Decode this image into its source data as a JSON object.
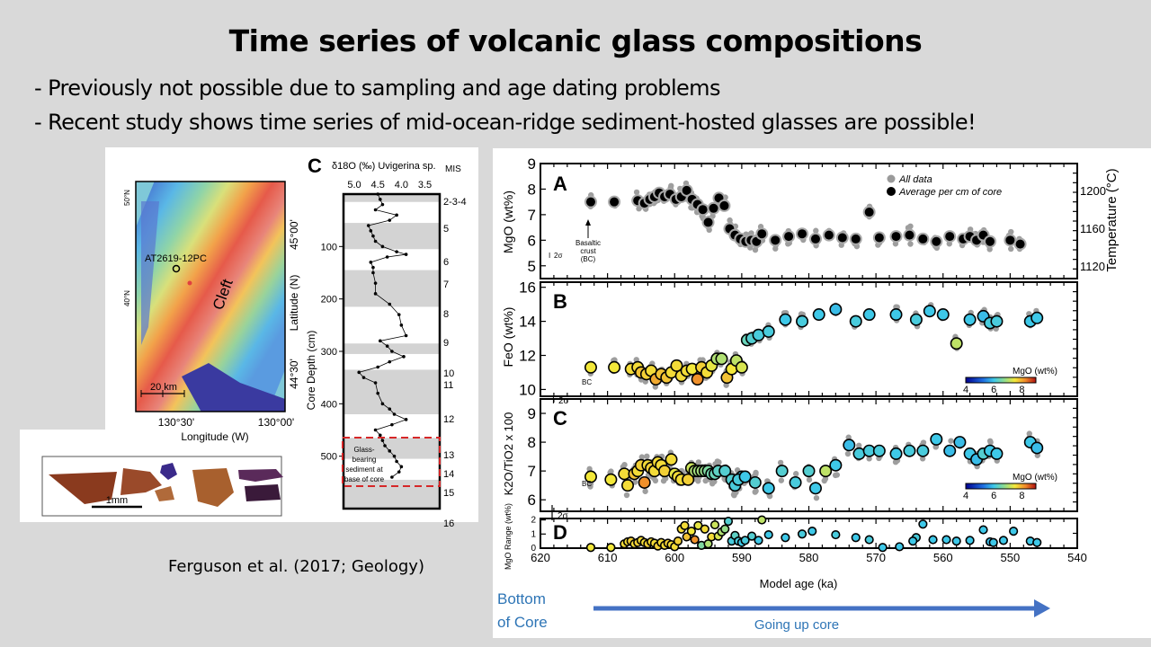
{
  "slide": {
    "title": "Time series of volcanic glass compositions",
    "bullets": [
      "- Previously not possible due to sampling and age dating problems",
      "- Recent study shows time series of mid-ocean-ridge sediment-hosted glasses are possible!"
    ],
    "citation": "Ferguson et al. (2017; Geology)",
    "bottom_label_line1": "Bottom",
    "bottom_label_line2": "of Core",
    "arrow_label": "Going up core",
    "arrow_color": "#4472c4",
    "label_color": "#2e75b6"
  },
  "map_panel": {
    "site_label": "AT2619-12PC",
    "feature_label": "Cleft",
    "scale_label": "20 km",
    "lat_ticks_left": [
      "50°N",
      "40°N"
    ],
    "lat_ticks_right": [
      "45°00'",
      "44°30'"
    ],
    "lon_ticks": [
      "130°30'",
      "130°00'"
    ],
    "ylabel": "Latitude (N)",
    "xlabel": "Longitude (W)"
  },
  "glass_panel": {
    "scale_label": "1mm"
  },
  "core_panel": {
    "panel_letter": "C",
    "top_label": "δ18O (‰) Uvigerina sp.",
    "mis_label": "MIS",
    "x_ticks": [
      "5.0",
      "4.5",
      "4.0",
      "3.5"
    ],
    "ylabel": "Core Depth (cm)",
    "depth_ticks": [
      100,
      200,
      300,
      400,
      500
    ],
    "mis_stages": [
      "2-3-4",
      "5",
      "6",
      "7",
      "8",
      "9",
      "10",
      "11",
      "12",
      "13",
      "14",
      "15",
      "16"
    ],
    "glass_note": [
      "Glass-",
      "bearing",
      "sediment at",
      "base of core"
    ],
    "shaded_bands_cm": [
      [
        0,
        15
      ],
      [
        55,
        105
      ],
      [
        145,
        215
      ],
      [
        285,
        305
      ],
      [
        335,
        420
      ],
      [
        465,
        505
      ],
      [
        545,
        600
      ]
    ],
    "d18O_profile": [
      [
        0,
        4.5
      ],
      [
        10,
        4.45
      ],
      [
        20,
        4.4
      ],
      [
        30,
        4.55
      ],
      [
        40,
        4.1
      ],
      [
        50,
        4.25
      ],
      [
        60,
        4.7
      ],
      [
        70,
        4.65
      ],
      [
        80,
        4.6
      ],
      [
        90,
        4.55
      ],
      [
        100,
        4.4
      ],
      [
        110,
        4.1
      ],
      [
        115,
        3.9
      ],
      [
        120,
        4.3
      ],
      [
        130,
        4.65
      ],
      [
        140,
        4.6
      ],
      [
        150,
        4.6
      ],
      [
        170,
        4.55
      ],
      [
        190,
        4.55
      ],
      [
        210,
        4.25
      ],
      [
        230,
        4.05
      ],
      [
        250,
        4.0
      ],
      [
        270,
        3.9
      ],
      [
        280,
        4.45
      ],
      [
        290,
        4.3
      ],
      [
        300,
        4.2
      ],
      [
        310,
        3.95
      ],
      [
        320,
        4.25
      ],
      [
        330,
        4.5
      ],
      [
        340,
        4.9
      ],
      [
        350,
        4.8
      ],
      [
        360,
        4.55
      ],
      [
        380,
        4.5
      ],
      [
        400,
        4.4
      ],
      [
        410,
        4.25
      ],
      [
        420,
        4.15
      ],
      [
        430,
        3.9
      ],
      [
        440,
        4.2
      ],
      [
        450,
        4.55
      ],
      [
        460,
        4.45
      ],
      [
        470,
        4.4
      ],
      [
        480,
        4.35
      ],
      [
        490,
        4.25
      ],
      [
        500,
        4.15
      ],
      [
        510,
        4.1
      ],
      [
        520,
        4.0
      ],
      [
        530,
        4.05
      ],
      [
        540,
        4.2
      ]
    ]
  },
  "chart_data": [
    {
      "type": "scatter",
      "panel": "A",
      "xlabel": "Model age (ka)",
      "ylabel": "MgO (wt%)",
      "y2label": "Temperature (°C)",
      "xlim": [
        620,
        540
      ],
      "ylim": [
        4.5,
        9
      ],
      "y_ticks": [
        5,
        6,
        7,
        8,
        9
      ],
      "y2_ticks": [
        1120,
        1160,
        1200
      ],
      "legend": [
        "All data",
        "Average per cm of core"
      ],
      "legend_position": "top-right",
      "annotation": [
        "Basaltic",
        "crust",
        "(BC)"
      ],
      "error_label": "2σ",
      "series": [
        {
          "name": "Average per cm of core",
          "x": [
            612.5,
            609,
            605.5,
            604.5,
            603.7,
            603,
            602.3,
            601.5,
            600.7,
            599.8,
            599,
            598.2,
            597.4,
            596.6,
            595.8,
            595,
            594.2,
            593.4,
            592.6,
            591.8,
            591,
            590.2,
            589.4,
            588.6,
            587.8,
            587,
            585,
            583,
            581,
            579,
            577,
            575,
            573,
            571,
            569.5,
            567,
            565,
            563,
            561,
            559,
            557,
            556,
            555,
            554,
            553,
            550,
            548.5
          ],
          "y": [
            7.5,
            7.5,
            7.55,
            7.45,
            7.6,
            7.7,
            7.85,
            7.7,
            7.8,
            7.6,
            7.7,
            7.95,
            7.6,
            7.4,
            7.2,
            6.7,
            7.25,
            7.65,
            7.35,
            6.45,
            6.2,
            6.05,
            5.95,
            6.0,
            5.95,
            6.25,
            6.0,
            6.15,
            6.25,
            6.05,
            6.2,
            6.1,
            6.05,
            7.1,
            6.1,
            6.15,
            6.2,
            6.05,
            5.95,
            6.15,
            6.05,
            6.15,
            6.0,
            6.2,
            5.95,
            6.0,
            5.85
          ]
        }
      ]
    },
    {
      "type": "scatter",
      "panel": "B",
      "xlabel": "Model age (ka)",
      "ylabel": "FeO (wt%)",
      "xlim": [
        620,
        540
      ],
      "ylim": [
        9.5,
        16.3
      ],
      "y_ticks": [
        10,
        12,
        14,
        16
      ],
      "colorbar_label": "MgO (wt%)",
      "colorbar_ticks": [
        4,
        6,
        8
      ],
      "annotation": "BC",
      "error_label": "2σ",
      "series": [
        {
          "name": "Average per cm of core",
          "x": [
            612.5,
            609,
            606.5,
            605.5,
            605,
            604.2,
            603.5,
            602.8,
            602,
            601.2,
            600.5,
            599.7,
            599,
            598.2,
            597.4,
            596.6,
            596,
            595.2,
            594.5,
            593.7,
            593,
            592.2,
            591.5,
            590.8,
            590,
            589.2,
            588.5,
            587.5,
            586,
            583.5,
            581,
            578.5,
            576,
            573,
            571,
            567,
            564,
            562,
            560,
            558,
            556,
            554,
            553,
            552,
            547,
            546
          ],
          "y": [
            11.3,
            11.3,
            11.2,
            11.3,
            11.0,
            10.9,
            11.1,
            10.6,
            10.9,
            10.7,
            11.0,
            11.4,
            10.8,
            11.1,
            11.2,
            10.6,
            11.3,
            11.0,
            11.4,
            11.8,
            11.8,
            10.7,
            11.2,
            11.7,
            11.3,
            12.9,
            13.0,
            13.2,
            13.4,
            14.1,
            14.0,
            14.4,
            14.7,
            14.0,
            14.4,
            14.4,
            14.1,
            14.6,
            14.4,
            12.7,
            14.1,
            14.3,
            13.9,
            14.0,
            14.0,
            14.2
          ],
          "mgo": [
            7.5,
            7.5,
            7.6,
            7.6,
            7.8,
            7.7,
            7.6,
            8.0,
            7.8,
            7.8,
            7.6,
            7.6,
            7.6,
            7.6,
            7.5,
            8.2,
            7.7,
            7.6,
            7.4,
            7.0,
            7.0,
            7.8,
            7.5,
            7.1,
            7.3,
            6.4,
            6.2,
            6.1,
            6.1,
            6.0,
            6.1,
            6.0,
            5.9,
            6.1,
            6.0,
            6.0,
            6.1,
            6.0,
            6.0,
            7.1,
            6.0,
            5.9,
            6.1,
            6.1,
            6.0,
            6.0
          ]
        }
      ]
    },
    {
      "type": "scatter",
      "panel": "C",
      "xlabel": "Model age (ka)",
      "ylabel": "K2O/TiO2 x 100",
      "xlim": [
        620,
        540
      ],
      "ylim": [
        5.6,
        9.5
      ],
      "y_ticks": [
        6,
        7,
        8,
        9
      ],
      "colorbar_label": "MgO (wt%)",
      "colorbar_ticks": [
        4,
        6,
        8
      ],
      "annotation": "BC",
      "error_label": "2σ",
      "series": [
        {
          "name": "Average per cm of core",
          "x": [
            612.5,
            609.5,
            607.5,
            607,
            606,
            605.5,
            605,
            604.5,
            604,
            603.5,
            603,
            602.5,
            602,
            601.5,
            600.5,
            600,
            599.5,
            599,
            598,
            597.5,
            597,
            596.5,
            596,
            595.5,
            595,
            594.5,
            594,
            593.5,
            592.5,
            591.5,
            591,
            590,
            590.5,
            589.5,
            588,
            586,
            584,
            582,
            580,
            579,
            577.5,
            576,
            574,
            572.5,
            571,
            569.5,
            567,
            565,
            563,
            561,
            559,
            557.5,
            556,
            555,
            554,
            553,
            552,
            547,
            546
          ],
          "y": [
            6.8,
            6.7,
            6.9,
            6.5,
            6.9,
            7.0,
            7.2,
            6.6,
            7.2,
            7.1,
            7.0,
            7.3,
            7.2,
            7.0,
            7.4,
            6.9,
            6.8,
            6.7,
            6.7,
            7.1,
            7.0,
            7.0,
            7.0,
            7.0,
            7.0,
            6.9,
            6.9,
            7.0,
            7.0,
            6.7,
            6.5,
            6.8,
            6.7,
            6.8,
            6.6,
            6.4,
            7.0,
            6.6,
            7.0,
            6.4,
            7.0,
            7.2,
            7.9,
            7.6,
            7.7,
            7.7,
            7.6,
            7.7,
            7.7,
            8.1,
            7.7,
            8.0,
            7.6,
            7.4,
            7.6,
            7.7,
            7.6,
            8.0,
            7.8
          ],
          "mgo": [
            7.5,
            7.5,
            7.6,
            7.6,
            7.8,
            7.6,
            7.7,
            8.2,
            7.6,
            7.7,
            7.6,
            7.6,
            7.6,
            7.7,
            7.6,
            7.4,
            7.6,
            7.6,
            7.7,
            7.2,
            7.0,
            6.9,
            6.9,
            6.8,
            6.6,
            6.5,
            6.4,
            6.3,
            6.2,
            6.2,
            6.1,
            6.0,
            6.1,
            6.0,
            6.2,
            6.0,
            6.2,
            6.1,
            6.2,
            6.0,
            7.1,
            6.0,
            5.9,
            6.1,
            6.1,
            6.1,
            6.0,
            6.1,
            6.1,
            6.0,
            5.9,
            5.9,
            6.0,
            5.9,
            6.2,
            6.0,
            6.0,
            6.0,
            5.9
          ]
        }
      ]
    },
    {
      "type": "scatter",
      "panel": "D",
      "xlabel": "Model age (ka)",
      "ylabel": "MgO Range (wt%)",
      "xlim": [
        620,
        540
      ],
      "ylim": [
        0,
        2.1
      ],
      "y_ticks": [
        0,
        1,
        2
      ],
      "x_ticks": [
        620,
        610,
        600,
        590,
        580,
        570,
        560,
        550,
        540
      ],
      "series": [
        {
          "name": "MgO range per cm",
          "x": [
            612.5,
            609.5,
            607.5,
            607,
            606.5,
            606,
            605.5,
            605,
            604.5,
            604,
            603.5,
            603,
            602.5,
            602,
            601.5,
            601,
            600.5,
            600,
            599.5,
            599,
            598.5,
            598.2,
            597.5,
            597,
            596.5,
            596,
            595.5,
            595,
            594.5,
            594,
            593.5,
            593,
            592.5,
            592,
            591.5,
            591,
            590.5,
            590,
            589.5,
            588.5,
            587.5,
            587,
            586,
            583.5,
            581,
            579.5,
            576,
            573,
            571,
            569,
            566.5,
            564,
            564.5,
            563,
            561.5,
            559.5,
            558,
            556,
            554,
            553,
            552.5,
            551,
            549.5,
            547,
            546
          ],
          "y": [
            0.05,
            0.05,
            0.3,
            0.45,
            0.5,
            0.3,
            0.4,
            0.55,
            0.4,
            0.3,
            0.45,
            0.35,
            0.15,
            0.4,
            0.2,
            0.35,
            0.25,
            0.1,
            0.5,
            1.35,
            1.6,
            0.8,
            1.2,
            0.6,
            1.6,
            0.2,
            1.35,
            0.3,
            0.8,
            1.65,
            0.85,
            1.15,
            1.35,
            1.9,
            0.5,
            0.9,
            0.5,
            0.4,
            0.55,
            0.85,
            0.55,
            2.0,
            0.95,
            0.75,
            1.0,
            1.2,
            0.95,
            0.75,
            0.6,
            0.05,
            0.1,
            0.75,
            0.5,
            1.7,
            0.6,
            0.6,
            0.5,
            0.55,
            1.3,
            0.45,
            0.4,
            0.55,
            1.2,
            0.5,
            0.4
          ],
          "mgo": [
            7.5,
            7.5,
            7.6,
            7.6,
            7.7,
            7.6,
            7.7,
            7.6,
            7.6,
            7.7,
            7.6,
            7.6,
            7.7,
            7.6,
            7.6,
            7.7,
            7.6,
            7.6,
            7.7,
            7.6,
            7.6,
            7.8,
            7.5,
            8.2,
            7.4,
            6.6,
            7.6,
            7.0,
            7.6,
            7.2,
            7.3,
            7.0,
            6.8,
            6.2,
            6.1,
            6.3,
            6.1,
            6.0,
            6.1,
            6.2,
            6.0,
            7.1,
            6.0,
            6.0,
            6.1,
            6.0,
            6.1,
            6.0,
            6.1,
            6.0,
            6.0,
            6.1,
            6.0,
            6.0,
            6.0,
            6.0,
            6.0,
            6.0,
            6.0,
            5.9,
            6.0,
            6.0,
            6.0,
            6.0,
            6.0
          ]
        }
      ]
    }
  ]
}
